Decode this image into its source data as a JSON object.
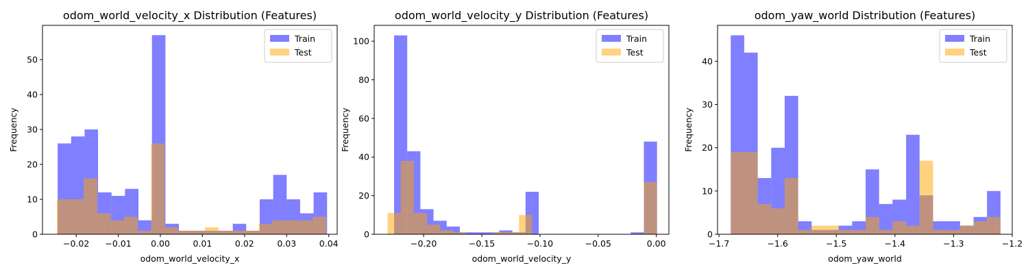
{
  "chart_data": [
    {
      "type": "bar",
      "title": "odom_world_velocity_x Distribution (Features)",
      "xlabel": "odom_world_velocity_x",
      "ylabel": "Frequency",
      "xlim": [
        -0.028,
        0.042
      ],
      "ylim": [
        0,
        59.8
      ],
      "xticks": [
        -0.02,
        -0.01,
        0.0,
        0.01,
        0.02,
        0.03,
        0.04
      ],
      "xtick_labels": [
        "−0.02",
        "−0.01",
        "0.00",
        "0.01",
        "0.02",
        "0.03",
        "0.04"
      ],
      "yticks": [
        0,
        10,
        20,
        30,
        40,
        50
      ],
      "legend": {
        "position": "top-right",
        "entries": [
          "Train",
          "Test"
        ]
      },
      "series": [
        {
          "name": "Train",
          "color": "#0000ff",
          "bins": [
            [
              -0.0244,
              -0.0212,
              26
            ],
            [
              -0.0212,
              -0.018,
              28
            ],
            [
              -0.018,
              -0.0148,
              30
            ],
            [
              -0.0148,
              -0.0116,
              12
            ],
            [
              -0.0116,
              -0.0084,
              11
            ],
            [
              -0.0084,
              -0.0052,
              13
            ],
            [
              -0.0052,
              -0.002,
              4
            ],
            [
              -0.002,
              0.0012,
              57
            ],
            [
              0.0012,
              0.0044,
              3
            ],
            [
              0.0044,
              0.0076,
              1
            ],
            [
              0.0076,
              0.0108,
              1
            ],
            [
              0.0108,
              0.014,
              1
            ],
            [
              0.014,
              0.0172,
              1
            ],
            [
              0.0172,
              0.0204,
              3
            ],
            [
              0.0204,
              0.0236,
              1
            ],
            [
              0.0236,
              0.0268,
              10
            ],
            [
              0.0268,
              0.03,
              17
            ],
            [
              0.03,
              0.0332,
              10
            ],
            [
              0.0332,
              0.0364,
              6
            ],
            [
              0.0364,
              0.0396,
              12
            ]
          ]
        },
        {
          "name": "Test",
          "color": "#ffa500",
          "bins": [
            [
              -0.0246,
              -0.0214,
              10
            ],
            [
              -0.0214,
              -0.0182,
              10
            ],
            [
              -0.0182,
              -0.015,
              16
            ],
            [
              -0.015,
              -0.0118,
              6
            ],
            [
              -0.0118,
              -0.0086,
              4
            ],
            [
              -0.0086,
              -0.0054,
              5
            ],
            [
              -0.0054,
              -0.0022,
              1
            ],
            [
              -0.0022,
              0.001,
              26
            ],
            [
              0.001,
              0.0042,
              2
            ],
            [
              0.0042,
              0.0074,
              1
            ],
            [
              0.0074,
              0.0106,
              1
            ],
            [
              0.0106,
              0.0138,
              2
            ],
            [
              0.0138,
              0.017,
              1
            ],
            [
              0.017,
              0.0202,
              1
            ],
            [
              0.0202,
              0.0234,
              1
            ],
            [
              0.0234,
              0.0266,
              3
            ],
            [
              0.0266,
              0.0298,
              4
            ],
            [
              0.0298,
              0.033,
              4
            ],
            [
              0.033,
              0.0362,
              4
            ],
            [
              0.0362,
              0.0394,
              5
            ]
          ]
        }
      ]
    },
    {
      "type": "bar",
      "title": "odom_world_velocity_y Distribution (Features)",
      "xlabel": "odom_world_velocity_y",
      "ylabel": "Frequency",
      "xlim": [
        -0.2425,
        0.0108
      ],
      "ylim": [
        0,
        108.2
      ],
      "xticks": [
        -0.2,
        -0.15,
        -0.1,
        -0.05,
        0.0
      ],
      "xtick_labels": [
        "−0.20",
        "−0.15",
        "−0.10",
        "−0.05",
        "0.00"
      ],
      "yticks": [
        0,
        20,
        40,
        60,
        80,
        100
      ],
      "legend": {
        "position": "top-right",
        "entries": [
          "Train",
          "Test"
        ]
      },
      "series": [
        {
          "name": "Train",
          "color": "#0000ff",
          "bins": [
            [
              -0.2254,
              -0.2141,
              103
            ],
            [
              -0.2141,
              -0.2028,
              43
            ],
            [
              -0.2028,
              -0.1915,
              13
            ],
            [
              -0.1915,
              -0.1802,
              7
            ],
            [
              -0.1802,
              -0.1689,
              4
            ],
            [
              -0.1689,
              -0.1576,
              1
            ],
            [
              -0.1576,
              -0.1463,
              1
            ],
            [
              -0.1463,
              -0.135,
              1
            ],
            [
              -0.135,
              -0.1237,
              2
            ],
            [
              -0.1237,
              -0.1124,
              1
            ],
            [
              -0.1124,
              -0.1011,
              22
            ],
            [
              -0.1011,
              -0.0898,
              0
            ],
            [
              -0.0898,
              -0.0785,
              0
            ],
            [
              -0.0785,
              -0.0672,
              0
            ],
            [
              -0.0672,
              -0.0559,
              0
            ],
            [
              -0.0559,
              -0.0446,
              0
            ],
            [
              -0.0446,
              -0.0333,
              0
            ],
            [
              -0.0333,
              -0.022,
              0
            ],
            [
              -0.022,
              -0.0107,
              1
            ],
            [
              -0.0107,
              0.0006,
              48
            ]
          ]
        },
        {
          "name": "Test",
          "color": "#ffa500",
          "bins": [
            [
              -0.231,
              -0.2197,
              11
            ],
            [
              -0.2197,
              -0.2084,
              38
            ],
            [
              -0.2084,
              -0.1971,
              11
            ],
            [
              -0.1971,
              -0.1858,
              5
            ],
            [
              -0.1858,
              -0.1745,
              2
            ],
            [
              -0.1745,
              -0.1632,
              1
            ],
            [
              -0.1632,
              -0.1519,
              0
            ],
            [
              -0.1519,
              -0.1406,
              0
            ],
            [
              -0.1406,
              -0.1293,
              1
            ],
            [
              -0.1293,
              -0.118,
              1
            ],
            [
              -0.118,
              -0.1067,
              10
            ],
            [
              -0.1067,
              -0.0954,
              0
            ],
            [
              -0.0954,
              -0.0841,
              0
            ],
            [
              -0.0841,
              -0.0728,
              0
            ],
            [
              -0.0728,
              -0.0615,
              0
            ],
            [
              -0.0615,
              -0.0502,
              0
            ],
            [
              -0.0502,
              -0.0389,
              0
            ],
            [
              -0.0389,
              -0.0276,
              0
            ],
            [
              -0.0276,
              -0.0163,
              0
            ],
            [
              -0.0107,
              0.0006,
              27
            ]
          ]
        }
      ]
    },
    {
      "type": "bar",
      "title": "odom_yaw_world Distribution (Features)",
      "xlabel": "odom_yaw_world",
      "ylabel": "Frequency",
      "xlim": [
        -1.7025,
        -1.2
      ],
      "ylim": [
        0,
        48.3
      ],
      "xticks": [
        -1.7,
        -1.6,
        -1.5,
        -1.4,
        -1.3,
        -1.2
      ],
      "xtick_labels": [
        "−1.7",
        "−1.6",
        "−1.5",
        "−1.4",
        "−1.3",
        "−1.2"
      ],
      "yticks": [
        0,
        10,
        20,
        30,
        40
      ],
      "legend": {
        "position": "top-right",
        "entries": [
          "Train",
          "Test"
        ]
      },
      "series": [
        {
          "name": "Train",
          "color": "#0000ff",
          "bins": [
            [
              -1.68,
              -1.657,
              46
            ],
            [
              -1.657,
              -1.634,
              42
            ],
            [
              -1.634,
              -1.611,
              13
            ],
            [
              -1.611,
              -1.588,
              20
            ],
            [
              -1.588,
              -1.565,
              32
            ],
            [
              -1.565,
              -1.542,
              3
            ],
            [
              -1.542,
              -1.519,
              1
            ],
            [
              -1.519,
              -1.496,
              1
            ],
            [
              -1.496,
              -1.473,
              2
            ],
            [
              -1.473,
              -1.45,
              3
            ],
            [
              -1.45,
              -1.427,
              15
            ],
            [
              -1.427,
              -1.404,
              7
            ],
            [
              -1.404,
              -1.381,
              8
            ],
            [
              -1.381,
              -1.358,
              23
            ],
            [
              -1.358,
              -1.335,
              9
            ],
            [
              -1.335,
              -1.312,
              3
            ],
            [
              -1.312,
              -1.289,
              3
            ],
            [
              -1.289,
              -1.266,
              2
            ],
            [
              -1.266,
              -1.243,
              4
            ],
            [
              -1.243,
              -1.22,
              10
            ]
          ]
        },
        {
          "name": "Test",
          "color": "#ffa500",
          "bins": [
            [
              -1.68,
              -1.657,
              19
            ],
            [
              -1.657,
              -1.634,
              19
            ],
            [
              -1.634,
              -1.611,
              7
            ],
            [
              -1.611,
              -1.588,
              6
            ],
            [
              -1.588,
              -1.565,
              13
            ],
            [
              -1.565,
              -1.542,
              1
            ],
            [
              -1.542,
              -1.519,
              2
            ],
            [
              -1.519,
              -1.496,
              2
            ],
            [
              -1.496,
              -1.473,
              1
            ],
            [
              -1.473,
              -1.45,
              1
            ],
            [
              -1.45,
              -1.427,
              4
            ],
            [
              -1.427,
              -1.404,
              1
            ],
            [
              -1.404,
              -1.381,
              3
            ],
            [
              -1.381,
              -1.358,
              2
            ],
            [
              -1.358,
              -1.335,
              17
            ],
            [
              -1.335,
              -1.312,
              1
            ],
            [
              -1.312,
              -1.289,
              1
            ],
            [
              -1.289,
              -1.266,
              2
            ],
            [
              -1.266,
              -1.243,
              3
            ],
            [
              -1.243,
              -1.22,
              4
            ]
          ]
        }
      ]
    }
  ]
}
